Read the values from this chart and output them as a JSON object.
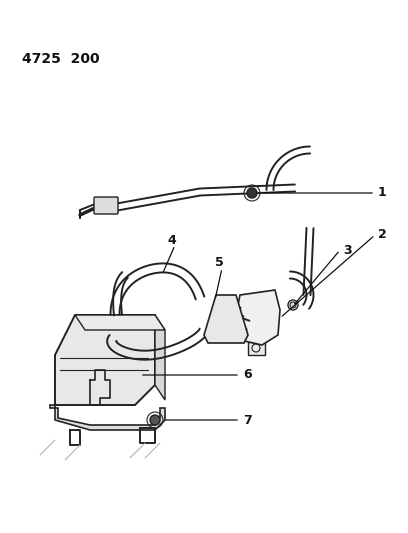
{
  "title_code": "4725  200",
  "bg_color": "#ffffff",
  "line_color": "#222222",
  "label_color": "#111111",
  "title_fontsize": 10,
  "label_fontsize": 9
}
